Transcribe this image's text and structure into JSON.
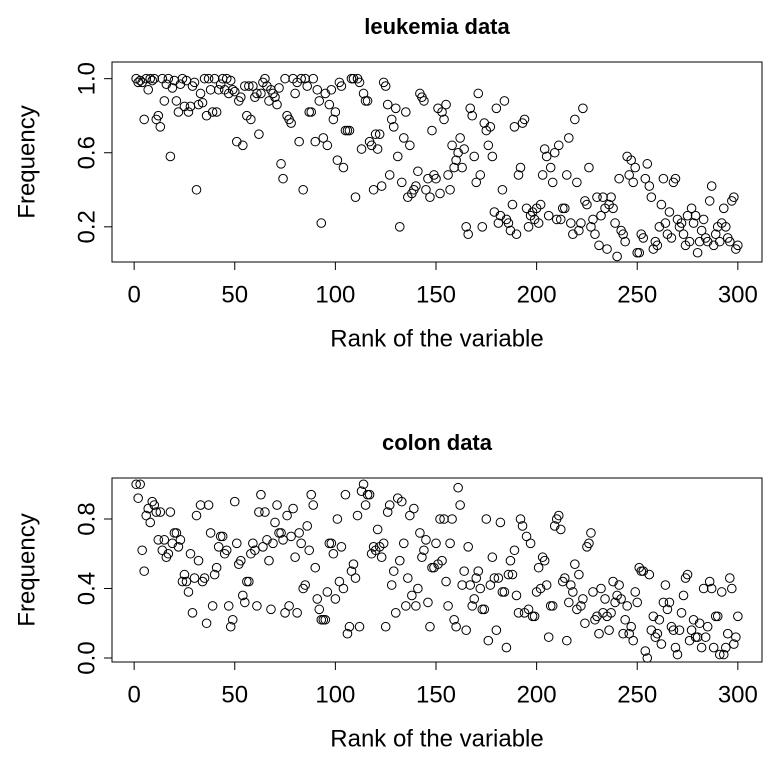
{
  "chart_data": [
    {
      "type": "scatter",
      "title": "leukemia data",
      "x_label": "Rank of the variable",
      "y_label": "Frequency",
      "xlim": [
        -11,
        312
      ],
      "xticks": [
        0,
        50,
        100,
        150,
        200,
        250,
        300
      ],
      "ylim": [
        0.01,
        1.09
      ],
      "yticks": [
        0.2,
        0.6,
        {
          "value": 1,
          "label": "1.0"
        }
      ],
      "color": "#000000",
      "x": [
        1,
        2,
        3,
        4,
        5,
        6,
        7,
        8,
        9,
        10,
        11,
        12,
        13,
        14,
        15,
        16,
        17,
        18,
        19,
        20,
        21,
        22,
        23,
        24,
        25,
        26,
        27,
        28,
        29,
        30,
        31,
        32,
        33,
        34,
        35,
        36,
        37,
        38,
        39,
        40,
        41,
        42,
        43,
        44,
        45,
        46,
        47,
        48,
        49,
        50,
        51,
        52,
        53,
        54,
        55,
        56,
        57,
        58,
        59,
        60,
        61,
        62,
        63,
        64,
        65,
        66,
        67,
        68,
        69,
        70,
        71,
        72,
        73,
        74,
        75,
        76,
        77,
        78,
        79,
        80,
        81,
        82,
        83,
        84,
        85,
        86,
        87,
        88,
        89,
        90,
        91,
        92,
        93,
        94,
        95,
        96,
        97,
        98,
        99,
        100,
        101,
        102,
        103,
        104,
        105,
        106,
        107,
        108,
        109,
        110,
        111,
        112,
        113,
        114,
        115,
        116,
        117,
        118,
        119,
        120,
        121,
        122,
        123,
        124,
        125,
        126,
        127,
        128,
        129,
        130,
        131,
        132,
        133,
        134,
        135,
        136,
        137,
        138,
        139,
        140,
        141,
        142,
        143,
        144,
        145,
        146,
        147,
        148,
        149,
        150,
        151,
        152,
        153,
        154,
        155,
        156,
        157,
        158,
        159,
        160,
        161,
        162,
        163,
        164,
        165,
        166,
        167,
        168,
        169,
        170,
        171,
        172,
        173,
        174,
        175,
        176,
        177,
        178,
        179,
        180,
        181,
        182,
        183,
        184,
        185,
        186,
        187,
        188,
        189,
        190,
        191,
        192,
        193,
        194,
        195,
        196,
        197,
        198,
        199,
        200,
        201,
        202,
        203,
        204,
        205,
        206,
        207,
        208,
        209,
        210,
        211,
        212,
        213,
        214,
        215,
        216,
        217,
        218,
        219,
        220,
        221,
        222,
        223,
        224,
        225,
        226,
        227,
        228,
        229,
        230,
        231,
        232,
        233,
        234,
        235,
        236,
        237,
        238,
        239,
        240,
        241,
        242,
        243,
        244,
        245,
        246,
        247,
        248,
        249,
        250,
        251,
        252,
        253,
        254,
        255,
        256,
        257,
        258,
        259,
        260,
        261,
        262,
        263,
        264,
        265,
        266,
        267,
        268,
        269,
        270,
        271,
        272,
        273,
        274,
        275,
        276,
        277,
        278,
        279,
        280,
        281,
        282,
        283,
        284,
        285,
        286,
        287,
        288,
        289,
        290,
        291,
        292,
        293,
        294,
        295,
        296,
        297,
        298,
        299,
        300
      ],
      "values": [
        1.0,
        0.98,
        0.99,
        0.98,
        0.78,
        1.0,
        0.94,
        1.0,
        0.99,
        1.0,
        0.78,
        0.8,
        0.74,
        1.0,
        0.88,
        0.97,
        1.0,
        0.58,
        0.95,
        0.99,
        0.88,
        0.82,
        0.97,
        1.0,
        0.85,
        0.99,
        0.82,
        0.85,
        0.96,
        0.98,
        0.4,
        0.86,
        0.92,
        0.87,
        1.0,
        0.8,
        1.0,
        0.94,
        0.82,
        1.0,
        0.82,
        0.94,
        0.97,
        1.0,
        0.94,
        1.0,
        0.92,
        0.99,
        0.94,
        0.93,
        0.66,
        0.88,
        0.9,
        0.64,
        0.96,
        0.8,
        0.96,
        0.78,
        0.96,
        0.9,
        0.92,
        0.7,
        0.92,
        0.98,
        1.0,
        0.96,
        0.88,
        0.94,
        0.92,
        0.9,
        0.86,
        0.95,
        0.54,
        0.46,
        1.0,
        0.8,
        0.78,
        0.76,
        1.0,
        0.92,
        0.98,
        0.66,
        1.0,
        0.4,
        1.0,
        0.96,
        0.82,
        0.82,
        1.0,
        0.66,
        0.94,
        0.88,
        0.22,
        0.68,
        0.92,
        0.64,
        0.86,
        0.94,
        0.78,
        0.82,
        0.56,
        0.98,
        0.96,
        0.52,
        0.72,
        0.72,
        0.72,
        1.0,
        1.0,
        0.36,
        1.0,
        0.98,
        0.62,
        0.92,
        0.88,
        0.88,
        0.66,
        0.64,
        0.4,
        0.7,
        0.62,
        0.7,
        0.42,
        0.98,
        0.96,
        0.86,
        0.48,
        0.78,
        0.74,
        0.84,
        0.58,
        0.2,
        0.44,
        0.68,
        0.82,
        0.36,
        0.64,
        0.38,
        0.4,
        0.42,
        0.5,
        0.92,
        0.9,
        0.88,
        0.4,
        0.46,
        0.36,
        0.72,
        0.48,
        0.46,
        0.84,
        0.38,
        0.82,
        0.78,
        0.86,
        0.48,
        0.4,
        0.64,
        0.52,
        0.56,
        0.6,
        0.68,
        0.52,
        0.62,
        0.2,
        0.16,
        0.84,
        0.8,
        0.58,
        0.44,
        0.92,
        0.48,
        0.2,
        0.76,
        0.72,
        0.64,
        0.74,
        0.58,
        0.28,
        0.84,
        0.22,
        0.26,
        0.4,
        0.88,
        0.24,
        0.22,
        0.18,
        0.32,
        0.74,
        0.16,
        0.48,
        0.52,
        0.76,
        0.78,
        0.3,
        0.2,
        0.26,
        0.28,
        0.24,
        0.3,
        0.22,
        0.32,
        0.48,
        0.62,
        0.58,
        0.26,
        0.52,
        0.44,
        0.6,
        0.24,
        0.64,
        0.24,
        0.3,
        0.3,
        0.48,
        0.68,
        0.22,
        0.16,
        0.78,
        0.44,
        0.18,
        0.22,
        0.84,
        0.34,
        0.32,
        0.52,
        0.2,
        0.24,
        0.16,
        0.36,
        0.1,
        0.26,
        0.36,
        0.3,
        0.08,
        0.32,
        0.36,
        0.3,
        0.22,
        0.04,
        0.46,
        0.18,
        0.16,
        0.12,
        0.58,
        0.48,
        0.56,
        0.44,
        0.52,
        0.06,
        0.06,
        0.16,
        0.14,
        0.46,
        0.54,
        0.42,
        0.36,
        0.08,
        0.12,
        0.1,
        0.2,
        0.32,
        0.46,
        0.22,
        0.16,
        0.28,
        0.14,
        0.44,
        0.46,
        0.24,
        0.2,
        0.22,
        0.16,
        0.1,
        0.26,
        0.12,
        0.3,
        0.22,
        0.26,
        0.06,
        0.12,
        0.18,
        0.24,
        0.14,
        0.12,
        0.34,
        0.42,
        0.1,
        0.16,
        0.2,
        0.12,
        0.22,
        0.3,
        0.2,
        0.14,
        0.12,
        0.34,
        0.36,
        0.08,
        0.1
      ]
    },
    {
      "type": "scatter",
      "title": "colon data",
      "x_label": "Rank of the variable",
      "y_label": "Frequency",
      "xlim": [
        -11,
        312
      ],
      "xticks": [
        0,
        50,
        100,
        150,
        200,
        250,
        300
      ],
      "ylim": [
        -0.023,
        1.036
      ],
      "yticks": [
        {
          "value": 0,
          "label": "0.0"
        },
        0.4,
        0.8
      ],
      "color": "#000000",
      "x": [
        1,
        2,
        3,
        4,
        5,
        6,
        7,
        8,
        9,
        10,
        11,
        12,
        13,
        14,
        15,
        16,
        17,
        18,
        19,
        20,
        21,
        22,
        23,
        24,
        25,
        26,
        27,
        28,
        29,
        30,
        31,
        32,
        33,
        34,
        35,
        36,
        37,
        38,
        39,
        40,
        41,
        42,
        43,
        44,
        45,
        46,
        47,
        48,
        49,
        50,
        51,
        52,
        53,
        54,
        55,
        56,
        57,
        58,
        59,
        60,
        61,
        62,
        63,
        64,
        65,
        66,
        67,
        68,
        69,
        70,
        71,
        72,
        73,
        74,
        75,
        76,
        77,
        78,
        79,
        80,
        81,
        82,
        83,
        84,
        85,
        86,
        87,
        88,
        89,
        90,
        91,
        92,
        93,
        94,
        95,
        96,
        97,
        98,
        99,
        100,
        101,
        102,
        103,
        104,
        105,
        106,
        107,
        108,
        109,
        110,
        111,
        112,
        113,
        114,
        115,
        116,
        117,
        118,
        119,
        120,
        121,
        122,
        123,
        124,
        125,
        126,
        127,
        128,
        129,
        130,
        131,
        132,
        133,
        134,
        135,
        136,
        137,
        138,
        139,
        140,
        141,
        142,
        143,
        144,
        145,
        146,
        147,
        148,
        149,
        150,
        151,
        152,
        153,
        154,
        155,
        156,
        157,
        158,
        159,
        160,
        161,
        162,
        163,
        164,
        165,
        166,
        167,
        168,
        169,
        170,
        171,
        172,
        173,
        174,
        175,
        176,
        177,
        178,
        179,
        180,
        181,
        182,
        183,
        184,
        185,
        186,
        187,
        188,
        189,
        190,
        191,
        192,
        193,
        194,
        195,
        196,
        197,
        198,
        199,
        200,
        201,
        202,
        203,
        204,
        205,
        206,
        207,
        208,
        209,
        210,
        211,
        212,
        213,
        214,
        215,
        216,
        217,
        218,
        219,
        220,
        221,
        222,
        223,
        224,
        225,
        226,
        227,
        228,
        229,
        230,
        231,
        232,
        233,
        234,
        235,
        236,
        237,
        238,
        239,
        240,
        241,
        242,
        243,
        244,
        245,
        246,
        247,
        248,
        249,
        250,
        251,
        252,
        253,
        254,
        255,
        256,
        257,
        258,
        259,
        260,
        261,
        262,
        263,
        264,
        265,
        266,
        267,
        268,
        269,
        270,
        271,
        272,
        273,
        274,
        275,
        276,
        277,
        278,
        279,
        280,
        281,
        282,
        283,
        284,
        285,
        286,
        287,
        288,
        289,
        290,
        291,
        292,
        293,
        294,
        295,
        296,
        297,
        298,
        299,
        300
      ],
      "values": [
        1.0,
        0.92,
        1.0,
        0.62,
        0.5,
        0.82,
        0.86,
        0.78,
        0.9,
        0.88,
        0.84,
        0.68,
        0.84,
        0.62,
        0.68,
        0.58,
        0.6,
        0.84,
        0.66,
        0.72,
        0.72,
        0.64,
        0.68,
        0.44,
        0.48,
        0.44,
        0.38,
        0.6,
        0.26,
        0.46,
        0.82,
        0.56,
        0.88,
        0.44,
        0.46,
        0.2,
        0.88,
        0.72,
        0.3,
        0.48,
        0.52,
        0.64,
        0.7,
        0.7,
        0.6,
        0.62,
        0.3,
        0.18,
        0.22,
        0.9,
        0.66,
        0.54,
        0.56,
        0.36,
        0.32,
        0.44,
        0.44,
        0.6,
        0.66,
        0.62,
        0.3,
        0.84,
        0.94,
        0.64,
        0.84,
        0.68,
        0.56,
        0.28,
        0.66,
        0.78,
        0.88,
        0.72,
        0.72,
        0.68,
        0.26,
        0.82,
        0.3,
        0.7,
        0.86,
        0.58,
        0.26,
        0.72,
        0.66,
        0.4,
        0.42,
        0.76,
        0.62,
        0.94,
        0.88,
        0.52,
        0.34,
        0.28,
        0.22,
        0.22,
        0.22,
        0.38,
        0.66,
        0.66,
        0.6,
        0.34,
        0.8,
        0.44,
        0.64,
        0.4,
        0.94,
        0.14,
        0.18,
        0.5,
        0.54,
        0.46,
        0.82,
        0.18,
        0.96,
        1.0,
        0.88,
        0.94,
        0.94,
        0.6,
        0.64,
        0.62,
        0.74,
        0.64,
        0.58,
        0.66,
        0.18,
        0.84,
        0.88,
        0.42,
        0.5,
        0.26,
        0.92,
        0.56,
        0.9,
        0.66,
        0.3,
        0.46,
        0.82,
        0.36,
        0.86,
        0.3,
        0.4,
        0.72,
        0.58,
        0.62,
        0.68,
        0.32,
        0.18,
        0.52,
        0.52,
        0.66,
        0.54,
        0.8,
        0.56,
        0.8,
        0.44,
        0.3,
        0.66,
        0.8,
        0.22,
        0.18,
        0.98,
        0.88,
        0.42,
        0.5,
        0.16,
        0.64,
        0.42,
        0.3,
        0.34,
        0.46,
        0.5,
        0.4,
        0.28,
        0.28,
        0.8,
        0.1,
        0.42,
        0.58,
        0.46,
        0.16,
        0.46,
        0.78,
        0.38,
        0.38,
        0.06,
        0.48,
        0.56,
        0.48,
        0.62,
        0.36,
        0.26,
        0.8,
        0.76,
        0.26,
        0.7,
        0.28,
        0.66,
        0.24,
        0.24,
        0.38,
        0.52,
        0.4,
        0.58,
        0.56,
        0.42,
        0.12,
        0.3,
        0.3,
        0.76,
        0.8,
        0.82,
        0.74,
        0.44,
        0.46,
        0.1,
        0.32,
        0.42,
        0.38,
        0.54,
        0.28,
        0.48,
        0.3,
        0.34,
        0.2,
        0.64,
        0.66,
        0.72,
        0.38,
        0.22,
        0.24,
        0.14,
        0.4,
        0.26,
        0.34,
        0.24,
        0.16,
        0.26,
        0.44,
        0.32,
        0.36,
        0.42,
        0.34,
        0.14,
        0.22,
        0.3,
        0.14,
        0.18,
        0.1,
        0.38,
        0.32,
        0.52,
        0.5,
        0.5,
        0.04,
        0.0,
        0.48,
        0.16,
        0.24,
        0.12,
        0.14,
        0.22,
        0.08,
        0.32,
        0.42,
        0.28,
        0.32,
        0.18,
        0.16,
        0.06,
        0.02,
        0.16,
        0.26,
        0.36,
        0.46,
        0.48,
        0.1,
        0.16,
        0.22,
        0.12,
        0.12,
        0.2,
        0.06,
        0.4,
        0.12,
        0.18,
        0.44,
        0.4,
        0.06,
        0.24,
        0.24,
        0.02,
        0.38,
        0.02,
        0.06,
        0.14,
        0.46,
        0.4,
        0.08,
        0.12,
        0.24
      ]
    }
  ]
}
